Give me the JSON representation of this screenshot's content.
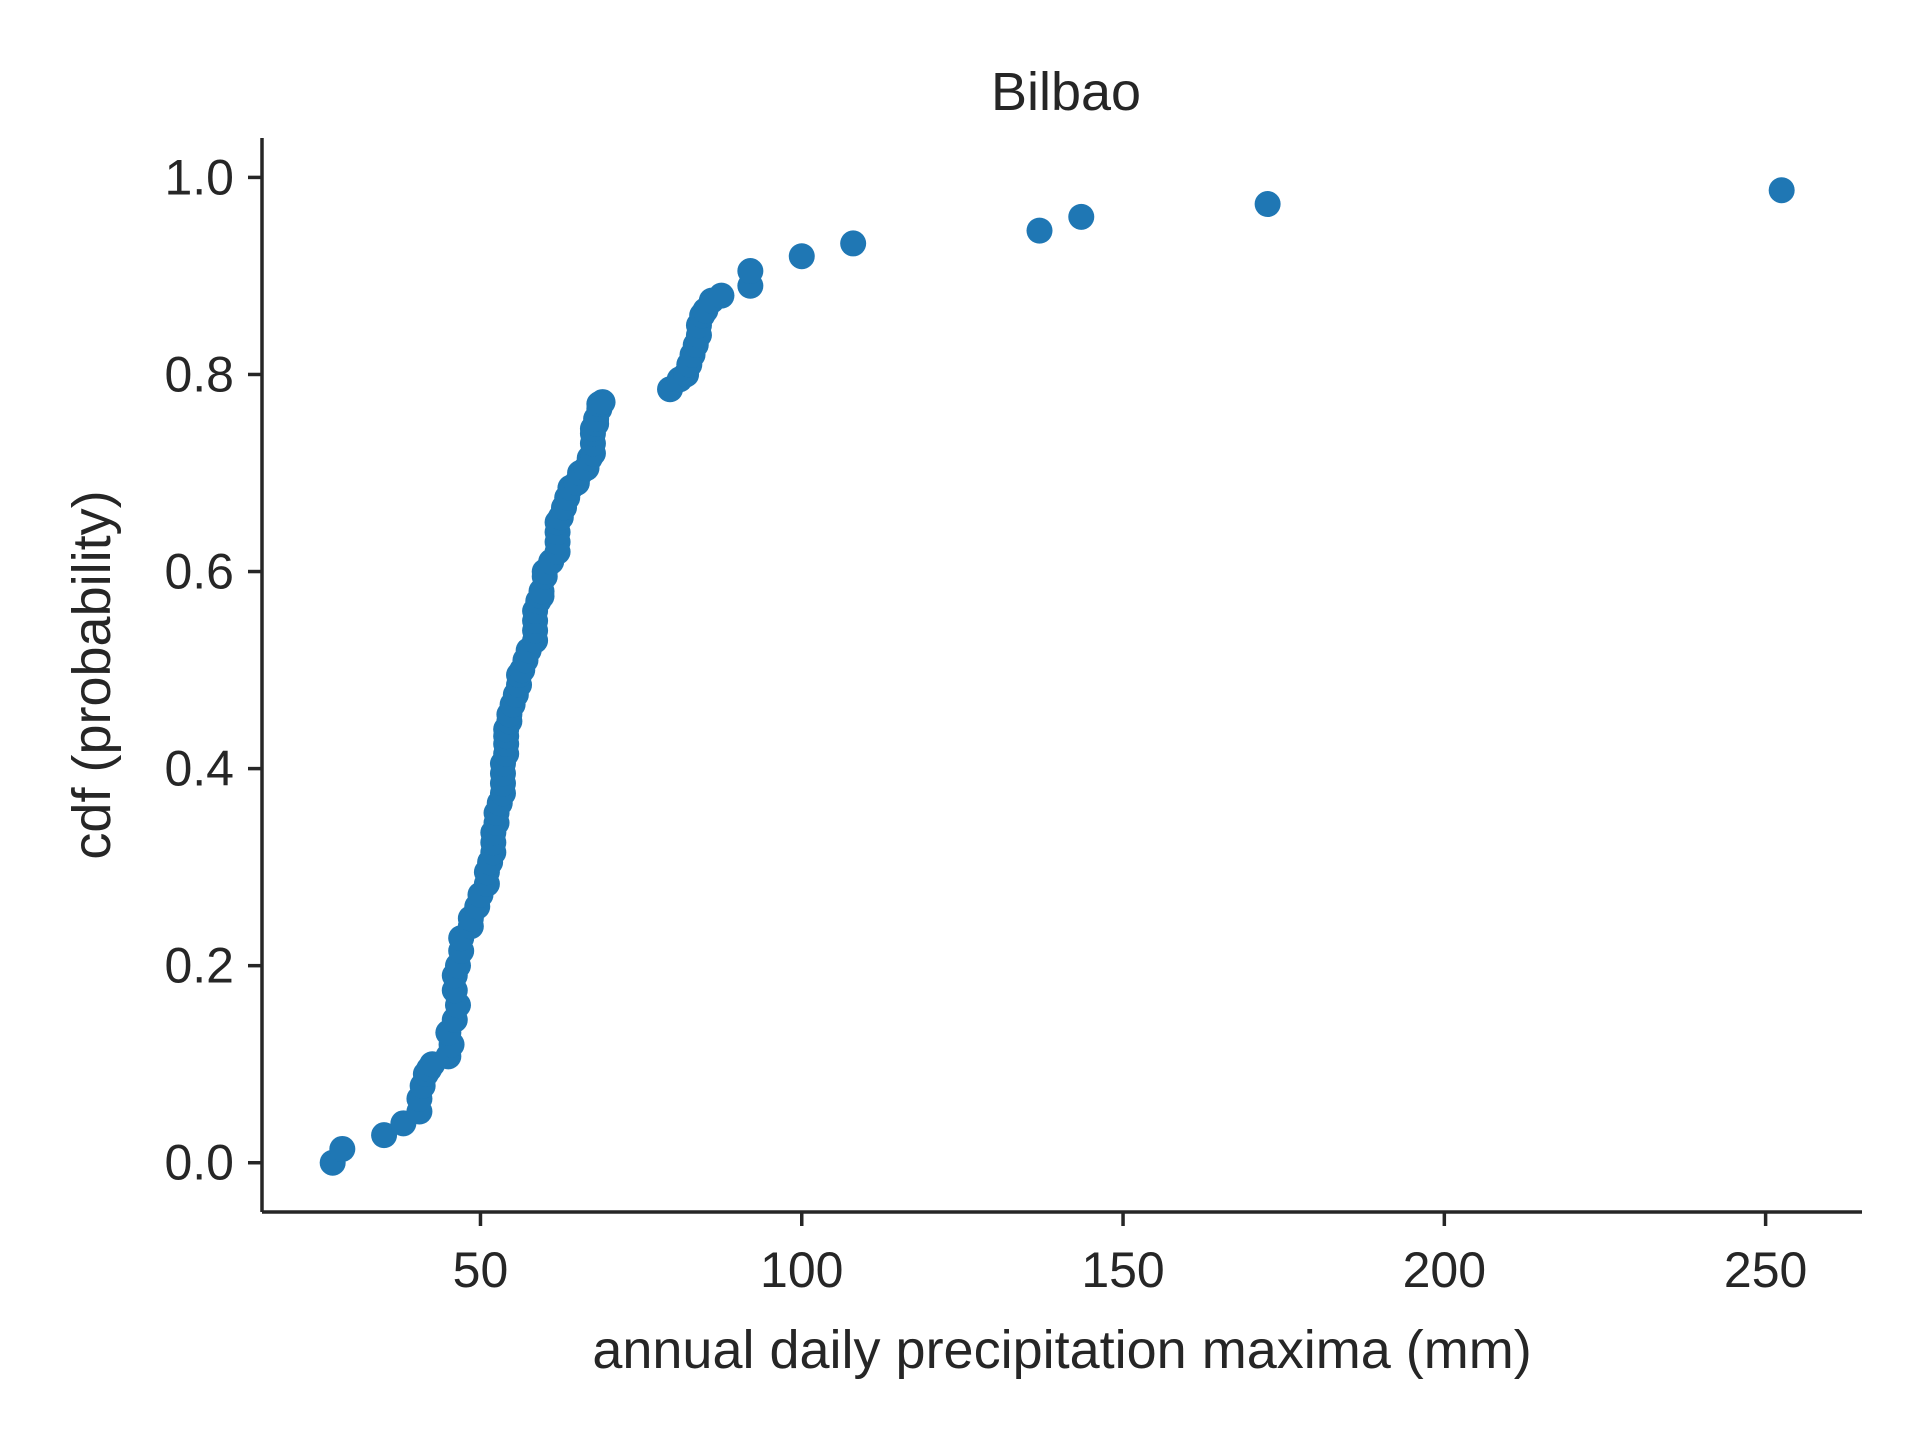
{
  "chart_data": {
    "type": "scatter",
    "title": "Bilbao",
    "xlabel": "annual daily precipitation maxima (mm)",
    "ylabel": "cdf (probability)",
    "xlim": [
      16,
      265
    ],
    "ylim": [
      -0.05,
      1.04
    ],
    "xticks": [
      50,
      100,
      150,
      200,
      250
    ],
    "xtick_labels": [
      "50",
      "100",
      "150",
      "200",
      "250"
    ],
    "yticks": [
      0.0,
      0.2,
      0.4,
      0.6,
      0.8,
      1.0
    ],
    "ytick_labels": [
      "0.0",
      "0.2",
      "0.4",
      "0.6",
      "0.8",
      "1.0"
    ],
    "grid": false,
    "marker_color": "#1f77b4",
    "series": [
      {
        "x": [
          27.0,
          28.5,
          35.0,
          38.0,
          40.5,
          40.5,
          41.0,
          41.5,
          42.0,
          42.5,
          45.0,
          45.5,
          45.0,
          46.0,
          46.5,
          46.0,
          46.0,
          46.5,
          47.0,
          47.0,
          48.5,
          48.5,
          49.5,
          50.0,
          51.0,
          51.0,
          51.5,
          52.0,
          52.0,
          52.0,
          52.5,
          52.5,
          53.0,
          53.5,
          53.5,
          53.5,
          53.5,
          54.0,
          54.0,
          54.0,
          54.0,
          54.5,
          54.5,
          55.0,
          55.5,
          56.0,
          56.0,
          56.5,
          57.0,
          57.5,
          58.5,
          58.5,
          58.5,
          58.5,
          59.0,
          59.5,
          59.5,
          60.0,
          60.0,
          61.0,
          62.0,
          62.0,
          62.0,
          62.0,
          62.5,
          63.0,
          63.5,
          64.0,
          65.0,
          65.5,
          66.5,
          67.0,
          67.5,
          67.5,
          67.5,
          67.5,
          68.0,
          68.0,
          68.5,
          68.5,
          69.0,
          79.5,
          81.0,
          82.0,
          82.5,
          83.0,
          83.5,
          84.0,
          84.0,
          84.5,
          85.0,
          86.0,
          87.5,
          92.0,
          92.0,
          100.0,
          108.0,
          137.0,
          143.5,
          172.5,
          252.5
        ],
        "y": [
          0.0,
          0.014,
          0.028,
          0.04,
          0.052,
          0.065,
          0.078,
          0.09,
          0.095,
          0.1,
          0.108,
          0.12,
          0.132,
          0.145,
          0.16,
          0.175,
          0.19,
          0.2,
          0.215,
          0.228,
          0.24,
          0.248,
          0.26,
          0.272,
          0.283,
          0.295,
          0.305,
          0.315,
          0.325,
          0.335,
          0.345,
          0.355,
          0.365,
          0.375,
          0.385,
          0.395,
          0.405,
          0.415,
          0.425,
          0.433,
          0.44,
          0.448,
          0.455,
          0.465,
          0.475,
          0.485,
          0.495,
          0.5,
          0.51,
          0.52,
          0.53,
          0.54,
          0.55,
          0.56,
          0.57,
          0.575,
          0.58,
          0.595,
          0.6,
          0.61,
          0.62,
          0.63,
          0.64,
          0.65,
          0.655,
          0.665,
          0.675,
          0.685,
          0.69,
          0.7,
          0.705,
          0.715,
          0.72,
          0.73,
          0.74,
          0.745,
          0.75,
          0.755,
          0.765,
          0.77,
          0.772,
          0.785,
          0.795,
          0.8,
          0.81,
          0.82,
          0.83,
          0.84,
          0.85,
          0.86,
          0.865,
          0.875,
          0.88,
          0.89,
          0.905,
          0.92,
          0.933,
          0.946,
          0.96,
          0.973,
          0.987
        ]
      }
    ]
  }
}
